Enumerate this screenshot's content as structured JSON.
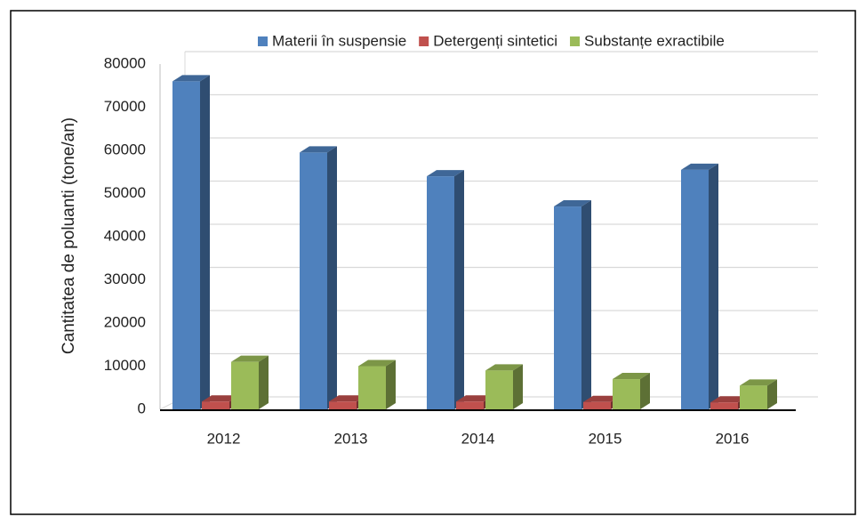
{
  "chart_data": {
    "type": "bar3d",
    "y_axis_label": "Cantitatea de poluanti (tone/an)",
    "categories": [
      "2012",
      "2013",
      "2014",
      "2015",
      "2016"
    ],
    "series": [
      {
        "name": "Materii în suspensie",
        "color": "#4f81bd",
        "values": [
          76000,
          59500,
          54000,
          47000,
          55500
        ]
      },
      {
        "name": "Detergenți sintetici",
        "color": "#c0504d",
        "values": [
          1800,
          1800,
          1800,
          1700,
          1600
        ]
      },
      {
        "name": "Substanțe exractibile",
        "color": "#9bbb59",
        "values": [
          11000,
          10000,
          9000,
          7000,
          5500
        ]
      }
    ],
    "ylim": [
      0,
      80000
    ],
    "yticks": [
      0,
      10000,
      20000,
      30000,
      40000,
      50000,
      60000,
      70000,
      80000
    ],
    "grid": true,
    "legend": "top"
  }
}
